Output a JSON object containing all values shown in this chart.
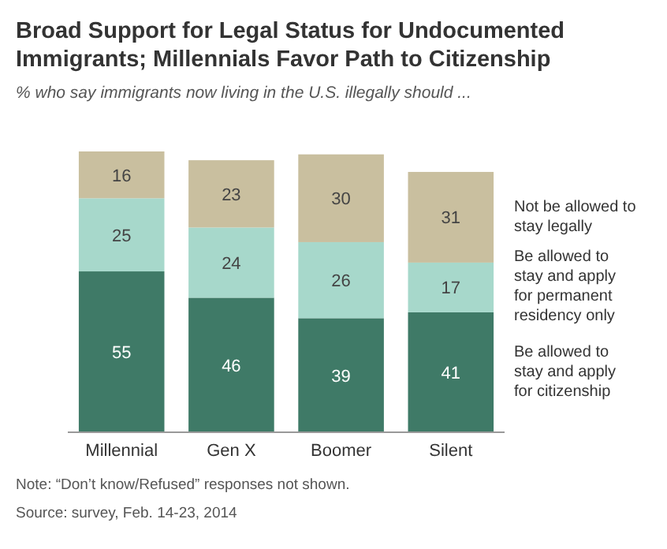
{
  "chart_data": {
    "type": "bar",
    "stacked": true,
    "data_labels": true,
    "legend": "right",
    "title": "Broad Support for Legal Status for Undocumented Immigrants; Millennials Favor Path to Citizenship",
    "subtitle": "% who say immigrants now living in the U.S. illegally should ...",
    "categories": [
      "Millennial",
      "Gen X",
      "Boomer",
      "Silent"
    ],
    "series": [
      {
        "name": "Be allowed to stay and apply for citizenship",
        "color": "#3f7a67",
        "values": [
          55,
          46,
          39,
          41
        ]
      },
      {
        "name": "Be allowed to stay and apply for permanent residency only",
        "color": "#a7d8cb",
        "values": [
          25,
          24,
          26,
          17
        ]
      },
      {
        "name": "Not be allowed to stay legally",
        "color": "#c9bf9f",
        "values": [
          16,
          23,
          30,
          31
        ]
      }
    ],
    "annotations": [
      "Note: “Don’t know/Refused” responses not shown.",
      "Source: survey, Feb. 14-23, 2014"
    ]
  }
}
